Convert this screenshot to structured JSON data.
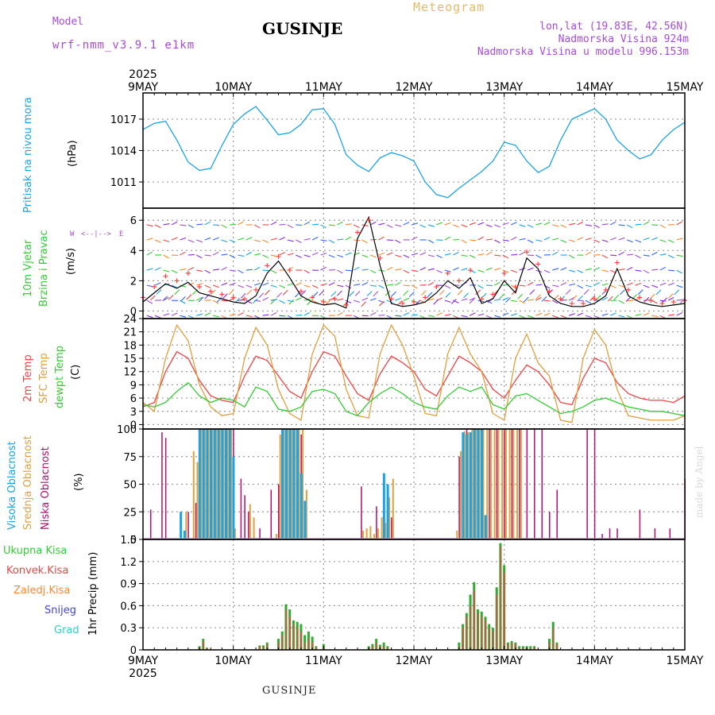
{
  "header": {
    "model_label": "Model",
    "model_name": "wrf-nmm_v3.9.1 e1km",
    "station": "GUSINJE",
    "product": "Meteogram",
    "lonlat": "lon,lat (19.83E, 42.56N)",
    "elevation": "Nadmorska Visina 924m",
    "model_elevation": "Nadmorska Visina u modelu 996.153m",
    "credit": "made by Angel",
    "footer_station": "GUSINJE"
  },
  "axis": {
    "year": "2025",
    "day_labels": [
      "9MAY",
      "10MAY",
      "11MAY",
      "12MAY",
      "13MAY",
      "14MAY",
      "15MAY"
    ]
  },
  "colors": {
    "pressure": "#1aa3e8",
    "wind_speed": "#000000",
    "gust_marker": "#ff4444",
    "t2m": "#ee4444",
    "tsfc": "#e0a040",
    "dewpoint": "#33cc33",
    "cloud_high": "#1aa3e8",
    "cloud_mid": "#e0a040",
    "cloud_low": "#b01070",
    "precip_total": "#33aa33",
    "precip_conv": "#ee4444",
    "precip_freezing": "#ff8833",
    "snow": "#4444dd",
    "hail": "#33cccc"
  },
  "chart_data": [
    {
      "type": "line",
      "panel": "pressure",
      "ylabel_name": "Pritisak na nivou mora",
      "ylabel_unit": "(hPa)",
      "yticks": [
        "1017",
        "1014",
        "1011"
      ],
      "ylim": [
        1008.5,
        1019.5
      ],
      "x_hours": [
        0,
        3,
        6,
        9,
        12,
        15,
        18,
        21,
        24,
        27,
        30,
        33,
        36,
        39,
        42,
        45,
        48,
        51,
        54,
        57,
        60,
        63,
        66,
        69,
        72,
        75,
        78,
        81,
        84,
        87,
        90,
        93,
        96,
        99,
        102,
        105,
        108,
        111,
        114,
        117,
        120,
        123,
        126,
        129,
        132,
        135,
        138,
        141,
        144
      ],
      "values": [
        1016.0,
        1016.6,
        1016.8,
        1015.0,
        1012.9,
        1012.1,
        1012.3,
        1014.5,
        1016.5,
        1017.5,
        1018.2,
        1016.9,
        1015.5,
        1015.7,
        1016.5,
        1017.9,
        1018.0,
        1016.5,
        1013.6,
        1012.6,
        1012.0,
        1013.3,
        1013.8,
        1013.5,
        1013.0,
        1011.0,
        1009.8,
        1009.5,
        1010.4,
        1011.2,
        1012.0,
        1013.0,
        1014.8,
        1014.5,
        1013.0,
        1011.9,
        1012.5,
        1015.0,
        1017.0,
        1017.5,
        1018.0,
        1017.0,
        1015.0,
        1014.0,
        1013.2,
        1013.6,
        1015.0,
        1016.0,
        1016.7
      ]
    },
    {
      "type": "line",
      "panel": "wind",
      "ylabel_name_1": "10m Vjetar",
      "ylabel_name_2": "Brzina i Pravac",
      "ylabel_unit": "(m/s)",
      "compass": {
        "n": "N",
        "w": "W",
        "e": "E",
        "s": "S"
      },
      "yticks": [
        "6",
        "4",
        "2",
        "0"
      ],
      "ylim": [
        -0.5,
        6.8
      ],
      "x_hours": [
        0,
        3,
        6,
        9,
        12,
        15,
        18,
        21,
        24,
        27,
        30,
        33,
        36,
        39,
        42,
        45,
        48,
        51,
        54,
        57,
        60,
        63,
        66,
        69,
        72,
        75,
        78,
        81,
        84,
        87,
        90,
        93,
        96,
        99,
        102,
        105,
        108,
        111,
        114,
        117,
        120,
        123,
        126,
        129,
        132,
        135,
        138,
        141,
        144
      ],
      "speed": [
        0.6,
        1.2,
        1.8,
        1.5,
        1.9,
        1.2,
        1.0,
        0.8,
        0.6,
        0.5,
        1.0,
        2.5,
        3.3,
        2.2,
        1.0,
        0.6,
        0.4,
        0.5,
        0.2,
        4.8,
        6.2,
        3.0,
        0.5,
        0.3,
        0.4,
        0.6,
        1.2,
        2.0,
        1.5,
        2.2,
        0.5,
        0.8,
        2.0,
        1.2,
        3.5,
        2.8,
        1.0,
        0.5,
        0.3,
        0.3,
        0.5,
        1.0,
        2.8,
        1.0,
        0.6,
        0.4,
        0.3,
        0.4,
        0.5
      ],
      "gust": [
        0.9,
        1.6,
        2.3,
        2.0,
        2.5,
        1.6,
        1.3,
        1.1,
        0.9,
        0.8,
        1.4,
        3.0,
        3.6,
        2.7,
        1.3,
        0.9,
        0.6,
        0.8,
        0.4,
        5.2,
        6.0,
        3.5,
        0.8,
        0.5,
        0.6,
        0.9,
        1.6,
        2.5,
        2.0,
        2.7,
        0.8,
        1.1,
        2.5,
        1.6,
        3.9,
        3.1,
        1.3,
        0.8,
        0.5,
        0.5,
        0.8,
        1.4,
        3.2,
        1.4,
        0.9,
        0.7,
        0.5,
        0.6,
        0.7
      ]
    },
    {
      "type": "line",
      "panel": "temperature",
      "ylabel_name_1": "2m Temp",
      "ylabel_name_2": "SFC Temp",
      "ylabel_name_3": "dewpt Temp",
      "ylabel_unit": "(C)",
      "yticks": [
        "24",
        "21",
        "18",
        "15",
        "12",
        "9",
        "6",
        "3",
        "0"
      ],
      "ylim": [
        -1,
        24
      ],
      "x_hours": [
        0,
        3,
        6,
        9,
        12,
        15,
        18,
        21,
        24,
        27,
        30,
        33,
        36,
        39,
        42,
        45,
        48,
        51,
        54,
        57,
        60,
        63,
        66,
        69,
        72,
        75,
        78,
        81,
        84,
        87,
        90,
        93,
        96,
        99,
        102,
        105,
        108,
        111,
        114,
        117,
        120,
        123,
        126,
        129,
        132,
        135,
        138,
        141,
        144
      ],
      "series": [
        {
          "key": "t2m",
          "values": [
            4.0,
            5.0,
            12.0,
            16.5,
            15.0,
            10.0,
            6.5,
            5.5,
            5.0,
            11.0,
            15.5,
            14.5,
            11.0,
            7.5,
            6.0,
            12.0,
            16.5,
            15.5,
            11.0,
            7.0,
            5.5,
            11.5,
            15.5,
            14.0,
            12.0,
            8.0,
            6.5,
            11.0,
            15.5,
            14.0,
            12.0,
            8.0,
            6.0,
            10.0,
            13.5,
            12.0,
            9.0,
            5.0,
            4.5,
            10.5,
            15.0,
            14.0,
            9.5,
            7.0,
            6.0,
            5.5,
            5.5,
            5.0,
            6.5
          ]
        },
        {
          "key": "tsfc",
          "values": [
            5.0,
            3.0,
            15.0,
            22.5,
            19.0,
            9.0,
            4.0,
            2.0,
            2.5,
            15.0,
            22.0,
            18.0,
            8.0,
            2.5,
            1.0,
            16.0,
            22.5,
            20.0,
            8.0,
            2.0,
            1.5,
            16.0,
            22.5,
            18.0,
            11.0,
            2.5,
            2.0,
            16.0,
            22.0,
            16.0,
            12.0,
            2.5,
            1.0,
            15.0,
            20.5,
            14.0,
            11.0,
            1.0,
            0.5,
            15.0,
            21.5,
            18.0,
            8.0,
            2.0,
            1.5,
            1.0,
            1.0,
            1.0,
            2.0
          ]
        },
        {
          "key": "dewpoint",
          "values": [
            4.5,
            4.0,
            5.0,
            7.5,
            9.5,
            6.5,
            5.0,
            6.0,
            5.5,
            4.0,
            8.5,
            7.5,
            3.5,
            3.0,
            4.0,
            7.5,
            8.0,
            7.0,
            3.0,
            2.0,
            5.0,
            7.0,
            8.5,
            7.0,
            5.0,
            4.0,
            3.5,
            6.5,
            8.5,
            7.5,
            8.5,
            4.5,
            3.5,
            6.5,
            7.0,
            5.5,
            4.0,
            2.5,
            3.0,
            4.0,
            5.5,
            6.0,
            5.0,
            4.0,
            3.5,
            3.0,
            3.0,
            2.5,
            2.0
          ]
        }
      ]
    },
    {
      "type": "bar",
      "panel": "clouds",
      "ylabel_name_1": "Visoka Oblacnost",
      "ylabel_name_2": "Srednja Oblacnost",
      "ylabel_name_3": "Niska Oblacnost",
      "ylabel_unit": "(%)",
      "yticks": [
        "100",
        "75",
        "50",
        "25",
        "0"
      ],
      "ylim": [
        0,
        100
      ],
      "high": {
        "x": [
          9,
          10,
          14,
          15,
          16,
          17,
          18,
          19,
          20,
          21,
          22,
          23,
          36,
          37,
          38,
          39,
          40,
          41,
          42,
          63,
          64,
          84,
          85,
          86,
          87,
          88,
          89,
          90
        ],
        "values": [
          25,
          8,
          100,
          100,
          100,
          100,
          100,
          100,
          100,
          100,
          100,
          75,
          100,
          100,
          100,
          100,
          100,
          60,
          35,
          60,
          50,
          97,
          95,
          97,
          100,
          100,
          100,
          22
        ]
      },
      "mid": {
        "x": [
          11,
          13,
          14,
          15,
          16,
          17,
          18,
          19,
          20,
          21,
          22,
          23,
          24,
          28,
          29,
          35,
          36,
          37,
          38,
          39,
          40,
          41,
          42,
          43,
          58,
          59,
          60,
          61,
          62,
          63,
          64,
          65,
          66,
          83,
          84,
          85,
          86,
          87,
          88,
          89,
          90,
          91,
          92,
          93,
          94,
          95,
          96,
          97,
          98,
          99,
          100
        ],
        "values": [
          25,
          80,
          70,
          100,
          100,
          100,
          100,
          100,
          100,
          100,
          100,
          100,
          10,
          32,
          20,
          5,
          95,
          100,
          100,
          100,
          100,
          100,
          100,
          45,
          8,
          10,
          12,
          5,
          10,
          20,
          15,
          38,
          55,
          8,
          80,
          98,
          97,
          100,
          100,
          100,
          100,
          100,
          100,
          100,
          100,
          100,
          100,
          100,
          100,
          100,
          100
        ]
      },
      "low": {
        "x": [
          2,
          5,
          6,
          10,
          12,
          14,
          16,
          18,
          20,
          22,
          24,
          26,
          27,
          28,
          31,
          34,
          36,
          38,
          40,
          42,
          58,
          62,
          64,
          66,
          84,
          86,
          88,
          90,
          92,
          94,
          96,
          98,
          100,
          102,
          104,
          106,
          108,
          110,
          118,
          120,
          122,
          124,
          126,
          132,
          136,
          140,
          144
        ],
        "values": [
          27,
          97,
          92,
          25,
          25,
          33,
          100,
          100,
          100,
          100,
          100,
          55,
          40,
          25,
          10,
          45,
          50,
          70,
          100,
          95,
          48,
          30,
          20,
          20,
          75,
          100,
          100,
          100,
          100,
          100,
          100,
          100,
          100,
          100,
          100,
          100,
          25,
          45,
          100,
          100,
          5,
          10,
          10,
          27,
          10,
          10,
          55
        ]
      }
    },
    {
      "type": "bar",
      "panel": "precip",
      "ylabel_name": "1hr Precip (mm)",
      "legend": [
        "Ukupna Kisa",
        "Konvek.Kisa",
        "Zaledj.Kisa",
        "Snijeg",
        "Grad"
      ],
      "yticks": [
        "1.5",
        "1.2",
        "0.9",
        "0.6",
        "0.3",
        "0"
      ],
      "ylim": [
        0,
        1.5
      ],
      "x_hours": [
        15,
        16,
        17,
        31,
        32,
        33,
        36,
        37,
        38,
        39,
        40,
        41,
        42,
        43,
        44,
        45,
        46,
        48,
        60,
        61,
        62,
        63,
        64,
        65,
        84,
        85,
        86,
        87,
        88,
        89,
        90,
        91,
        92,
        93,
        94,
        95,
        96,
        97,
        98,
        99,
        100,
        101,
        102,
        103,
        104,
        108,
        109,
        110
      ],
      "total": [
        0.05,
        0.15,
        0.03,
        0.06,
        0.06,
        0.1,
        0.15,
        0.25,
        0.62,
        0.55,
        0.4,
        0.38,
        0.35,
        0.2,
        0.25,
        0.18,
        0.05,
        0.08,
        0.05,
        0.08,
        0.15,
        0.07,
        0.1,
        0.05,
        0.1,
        0.35,
        0.5,
        0.75,
        0.92,
        0.55,
        0.52,
        0.45,
        0.35,
        0.3,
        0.85,
        1.45,
        1.15,
        0.1,
        0.12,
        0.1,
        0.05,
        0.05,
        0.05,
        0.05,
        0.05,
        0.15,
        0.38,
        0.1
      ],
      "convective": [
        0.03,
        0.12,
        0.02,
        0.05,
        0.05,
        0.08,
        0.1,
        0.2,
        0.55,
        0.45,
        0.35,
        0.3,
        0.25,
        0.1,
        0.15,
        0.1,
        0.04,
        0.05,
        0.03,
        0.05,
        0.1,
        0.05,
        0.05,
        0.03,
        0.05,
        0.3,
        0.45,
        0.6,
        0.8,
        0.5,
        0.45,
        0.4,
        0.3,
        0.25,
        0.75,
        1.4,
        1.05,
        0.08,
        0.1,
        0.08,
        0.03,
        0.03,
        0.03,
        0.03,
        0.03,
        0.1,
        0.3,
        0.08
      ]
    }
  ]
}
